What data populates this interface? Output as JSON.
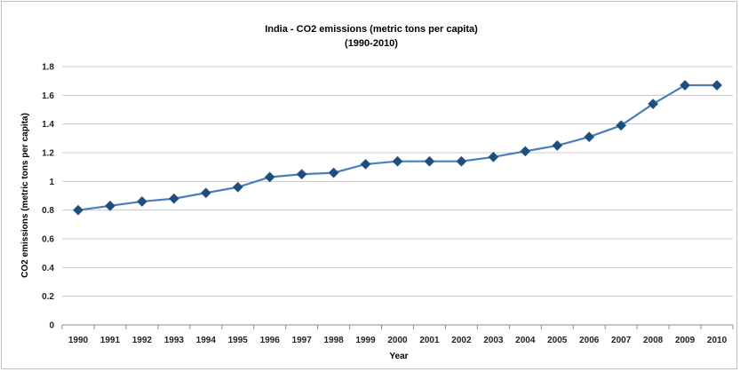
{
  "chart_data": {
    "type": "line",
    "title": "India - CO2 emissions (metric tons per capita)",
    "subtitle": "(1990-2010)",
    "xlabel": "Year",
    "ylabel": "CO2 emissions (metric tons per capita)",
    "ylim": [
      0,
      1.8
    ],
    "yticks": [
      "0",
      "0.2",
      "0.4",
      "0.6",
      "0.8",
      "1",
      "1.2",
      "1.4",
      "1.6",
      "1.8"
    ],
    "grid": true,
    "legend": "none",
    "line_color": "#4a7ebb",
    "marker_color": "#1f4e79",
    "categories": [
      "1990",
      "1991",
      "1992",
      "1993",
      "1994",
      "1995",
      "1996",
      "1997",
      "1998",
      "1999",
      "2000",
      "2001",
      "2002",
      "2003",
      "2004",
      "2005",
      "2006",
      "2007",
      "2008",
      "2009",
      "2010"
    ],
    "series": [
      {
        "values": [
          0.8,
          0.83,
          0.86,
          0.88,
          0.92,
          0.96,
          1.03,
          1.05,
          1.06,
          1.12,
          1.14,
          1.14,
          1.14,
          1.17,
          1.21,
          1.25,
          1.31,
          1.39,
          1.54,
          1.67,
          1.67
        ]
      }
    ]
  }
}
